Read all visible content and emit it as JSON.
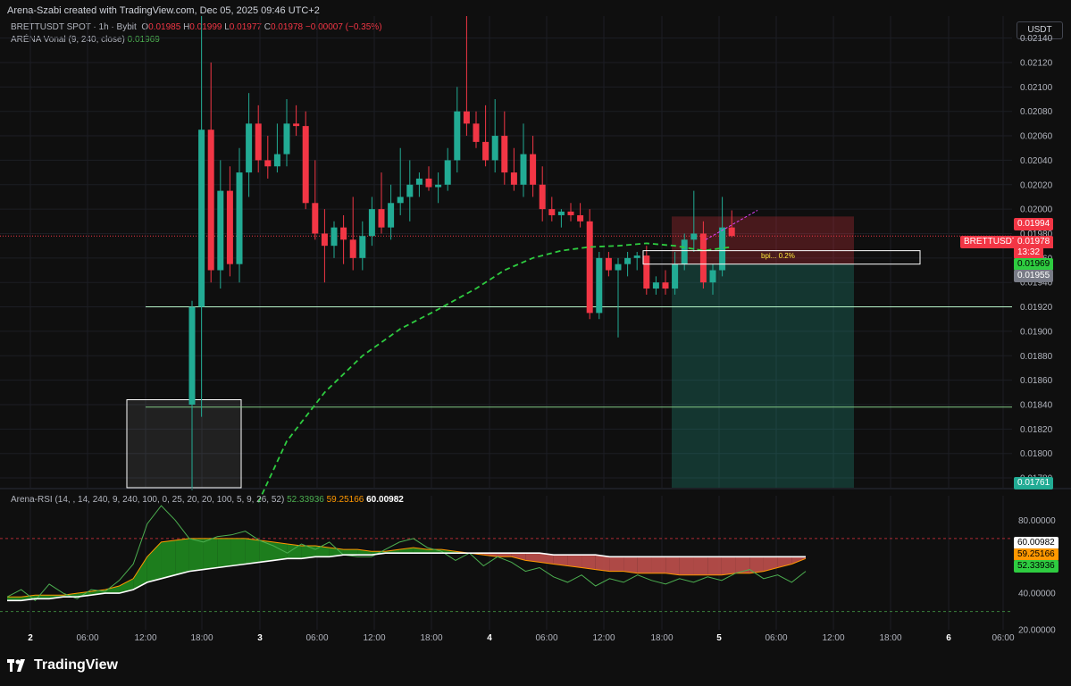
{
  "header": {
    "credit": "Arena-Szabi created with TradingView.com, Dec 05, 2025 09:46 UTC+2",
    "symbol_line": "BRETTUSDT SPOT · 1h · Bybit",
    "o_label": "O",
    "o_val": "0.01985",
    "h_label": "H",
    "h_val": "0.01999",
    "l_label": "L",
    "l_val": "0.01977",
    "c_label": "C",
    "c_val": "0.01978",
    "change": "−0.00007 (−0.35%)",
    "indicator_name": "ARÉNA Vonal (9, 240, close)",
    "indicator_val": "0.01969",
    "currency": "USDT"
  },
  "rsi_legend": {
    "name": "Arena-RSI (14, , 14, 240, 9, 240, 100, 0, 25, 20, 20, 100, 5, 9, 26, 52)",
    "v1": "52.33936",
    "v2": "59.25166",
    "v3": "60.00982"
  },
  "price_tags": {
    "high_tag": "0.01994",
    "symbol_tag": "BRETTUSDT",
    "last_price": "0.01978",
    "countdown": "13:32",
    "vonal": "0.01969",
    "gray_tag": "0.01955",
    "bottom_tag": "0.01761"
  },
  "rsi_tags": {
    "white": "60.00982",
    "orange": "59.25166",
    "green": "52.33936"
  },
  "footer": {
    "brand": "TradingView"
  },
  "annotation": "bpi... 0.2%",
  "colors": {
    "up": "#22ab94",
    "down": "#f23645",
    "vonal": "#2ecc40",
    "rsi_green": "#4caf50",
    "rsi_orange": "#ff9800"
  },
  "chart_data": {
    "type": "candlestick",
    "price_axis": {
      "ticks": [
        "0.02140",
        "0.02120",
        "0.02100",
        "0.02080",
        "0.02060",
        "0.02040",
        "0.02020",
        "0.02000",
        "0.01980",
        "0.01960",
        "0.01940",
        "0.01920",
        "0.01900",
        "0.01880",
        "0.01860",
        "0.01840",
        "0.01820",
        "0.01800",
        "0.01780"
      ],
      "range": [
        0.01772,
        0.02158
      ]
    },
    "time_axis": {
      "labels": [
        "2",
        "06:00",
        "12:00",
        "18:00",
        "3",
        "06:00",
        "12:00",
        "18:00",
        "4",
        "06:00",
        "12:00",
        "18:00",
        "5",
        "06:00",
        "12:00",
        "18:00",
        "6",
        "06:00"
      ]
    },
    "candles": [
      [
        0.0184,
        0.01925,
        0.0177,
        0.0192
      ],
      [
        0.0192,
        0.02158,
        0.0183,
        0.02065
      ],
      [
        0.02065,
        0.0212,
        0.0194,
        0.0195
      ],
      [
        0.0195,
        0.0204,
        0.01935,
        0.02015
      ],
      [
        0.02015,
        0.02035,
        0.01945,
        0.01955
      ],
      [
        0.01955,
        0.0205,
        0.0194,
        0.0203
      ],
      [
        0.0203,
        0.02095,
        0.0201,
        0.0207
      ],
      [
        0.0207,
        0.02085,
        0.0203,
        0.0204
      ],
      [
        0.0204,
        0.0206,
        0.02025,
        0.02035
      ],
      [
        0.02035,
        0.0207,
        0.0203,
        0.02045
      ],
      [
        0.02045,
        0.0209,
        0.02035,
        0.0207
      ],
      [
        0.0207,
        0.02085,
        0.0206,
        0.02068
      ],
      [
        0.02068,
        0.0208,
        0.02,
        0.02005
      ],
      [
        0.02005,
        0.0204,
        0.01975,
        0.0198
      ],
      [
        0.0198,
        0.02,
        0.0194,
        0.0197
      ],
      [
        0.0197,
        0.0199,
        0.0196,
        0.01985
      ],
      [
        0.01985,
        0.01995,
        0.01955,
        0.01975
      ],
      [
        0.01975,
        0.0201,
        0.0195,
        0.0196
      ],
      [
        0.0196,
        0.0199,
        0.0195,
        0.01978
      ],
      [
        0.01978,
        0.0201,
        0.0197,
        0.02
      ],
      [
        0.02,
        0.0203,
        0.0198,
        0.01985
      ],
      [
        0.01985,
        0.0202,
        0.01975,
        0.02005
      ],
      [
        0.02005,
        0.0205,
        0.01995,
        0.0201
      ],
      [
        0.0201,
        0.0204,
        0.0199,
        0.0202
      ],
      [
        0.0202,
        0.0203,
        0.0201,
        0.02025
      ],
      [
        0.02025,
        0.02035,
        0.02015,
        0.02018
      ],
      [
        0.02018,
        0.0203,
        0.02005,
        0.0202
      ],
      [
        0.0202,
        0.0205,
        0.02015,
        0.0204
      ],
      [
        0.0204,
        0.021,
        0.0203,
        0.0208
      ],
      [
        0.0208,
        0.02158,
        0.0206,
        0.0207
      ],
      [
        0.0207,
        0.0208,
        0.0205,
        0.02055
      ],
      [
        0.02055,
        0.02085,
        0.02035,
        0.0204
      ],
      [
        0.0204,
        0.0209,
        0.0203,
        0.0206
      ],
      [
        0.0206,
        0.0208,
        0.0202,
        0.0203
      ],
      [
        0.0203,
        0.0205,
        0.02015,
        0.0202
      ],
      [
        0.0202,
        0.0207,
        0.0201,
        0.02045
      ],
      [
        0.02045,
        0.0206,
        0.0201,
        0.0202
      ],
      [
        0.0202,
        0.02035,
        0.0199,
        0.02
      ],
      [
        0.02,
        0.0201,
        0.0199,
        0.01995
      ],
      [
        0.01995,
        0.02,
        0.01985,
        0.01998
      ],
      [
        0.01998,
        0.02005,
        0.0199,
        0.01995
      ],
      [
        0.01995,
        0.02005,
        0.01985,
        0.0199
      ],
      [
        0.0199,
        0.02,
        0.0191,
        0.01915
      ],
      [
        0.01915,
        0.01965,
        0.0191,
        0.0196
      ],
      [
        0.0196,
        0.01965,
        0.01945,
        0.0195
      ],
      [
        0.0195,
        0.0196,
        0.01895,
        0.01955
      ],
      [
        0.01955,
        0.01965,
        0.01945,
        0.0196
      ],
      [
        0.0196,
        0.01965,
        0.0195,
        0.01962
      ],
      [
        0.01962,
        0.0197,
        0.0193,
        0.01935
      ],
      [
        0.01935,
        0.01945,
        0.0193,
        0.0194
      ],
      [
        0.0194,
        0.0195,
        0.0193,
        0.01935
      ],
      [
        0.01935,
        0.01965,
        0.0193,
        0.01955
      ],
      [
        0.01955,
        0.0198,
        0.0195,
        0.01975
      ],
      [
        0.01975,
        0.02015,
        0.01965,
        0.0198
      ],
      [
        0.0198,
        0.0199,
        0.01935,
        0.0194
      ],
      [
        0.0194,
        0.01955,
        0.0193,
        0.0195
      ],
      [
        0.0195,
        0.0201,
        0.01945,
        0.01985
      ],
      [
        0.01985,
        0.01999,
        0.01977,
        0.01978
      ]
    ],
    "vonal_line": [
      [
        7,
        0.0176
      ],
      [
        10,
        0.0181
      ],
      [
        14,
        0.0185
      ],
      [
        18,
        0.0188
      ],
      [
        22,
        0.01902
      ],
      [
        26,
        0.01918
      ],
      [
        30,
        0.01935
      ],
      [
        33,
        0.0195
      ],
      [
        36,
        0.0196
      ],
      [
        39,
        0.01966
      ],
      [
        42,
        0.01969
      ],
      [
        45,
        0.0197
      ],
      [
        48,
        0.01972
      ],
      [
        51,
        0.0197
      ],
      [
        54,
        0.01966
      ],
      [
        57,
        0.01969
      ]
    ],
    "horizontal_levels": [
      0.0192,
      0.01838
    ],
    "box_levels": {
      "upper_top": 0.01994,
      "entry": 0.01955,
      "lower_bottom": 0.01761
    },
    "rsi": {
      "range": [
        20,
        90
      ],
      "ticks": [
        "80.00000",
        "60.00000",
        "40.00000",
        "20.00000"
      ],
      "levels": [
        70,
        30
      ],
      "fast": [
        38,
        42,
        36,
        45,
        40,
        37,
        42,
        41,
        47,
        56,
        78,
        88,
        80,
        70,
        68,
        71,
        72,
        74,
        69,
        66,
        62,
        67,
        64,
        68,
        61,
        60,
        60,
        64,
        68,
        70,
        65,
        63,
        58,
        62,
        55,
        60,
        57,
        52,
        54,
        49,
        46,
        50,
        44,
        48,
        46,
        50,
        47,
        45,
        48,
        46,
        49,
        47,
        51,
        53,
        48,
        50,
        46,
        52
      ],
      "slow": [
        38,
        38,
        39,
        39,
        39,
        40,
        41,
        42,
        44,
        48,
        60,
        68,
        69,
        70,
        70,
        70,
        70,
        70,
        69,
        68,
        67,
        66,
        66,
        65,
        64,
        64,
        63,
        63,
        64,
        65,
        64,
        64,
        63,
        62,
        61,
        60,
        60,
        58,
        57,
        56,
        55,
        54,
        53,
        52,
        52,
        51,
        51,
        51,
        50,
        50,
        50,
        50,
        51,
        51,
        52,
        54,
        56,
        59
      ],
      "avg": [
        36,
        36,
        37,
        37,
        38,
        38,
        39,
        40,
        40,
        42,
        46,
        48,
        50,
        52,
        53,
        54,
        55,
        56,
        57,
        58,
        59,
        59,
        60,
        60,
        61,
        61,
        61,
        62,
        62,
        62,
        62,
        62,
        62,
        62,
        62,
        62,
        62,
        62,
        62,
        61,
        61,
        61,
        61,
        60,
        60,
        60,
        60,
        60,
        60,
        60,
        60,
        60,
        60,
        60,
        60,
        60,
        60,
        60
      ]
    }
  }
}
